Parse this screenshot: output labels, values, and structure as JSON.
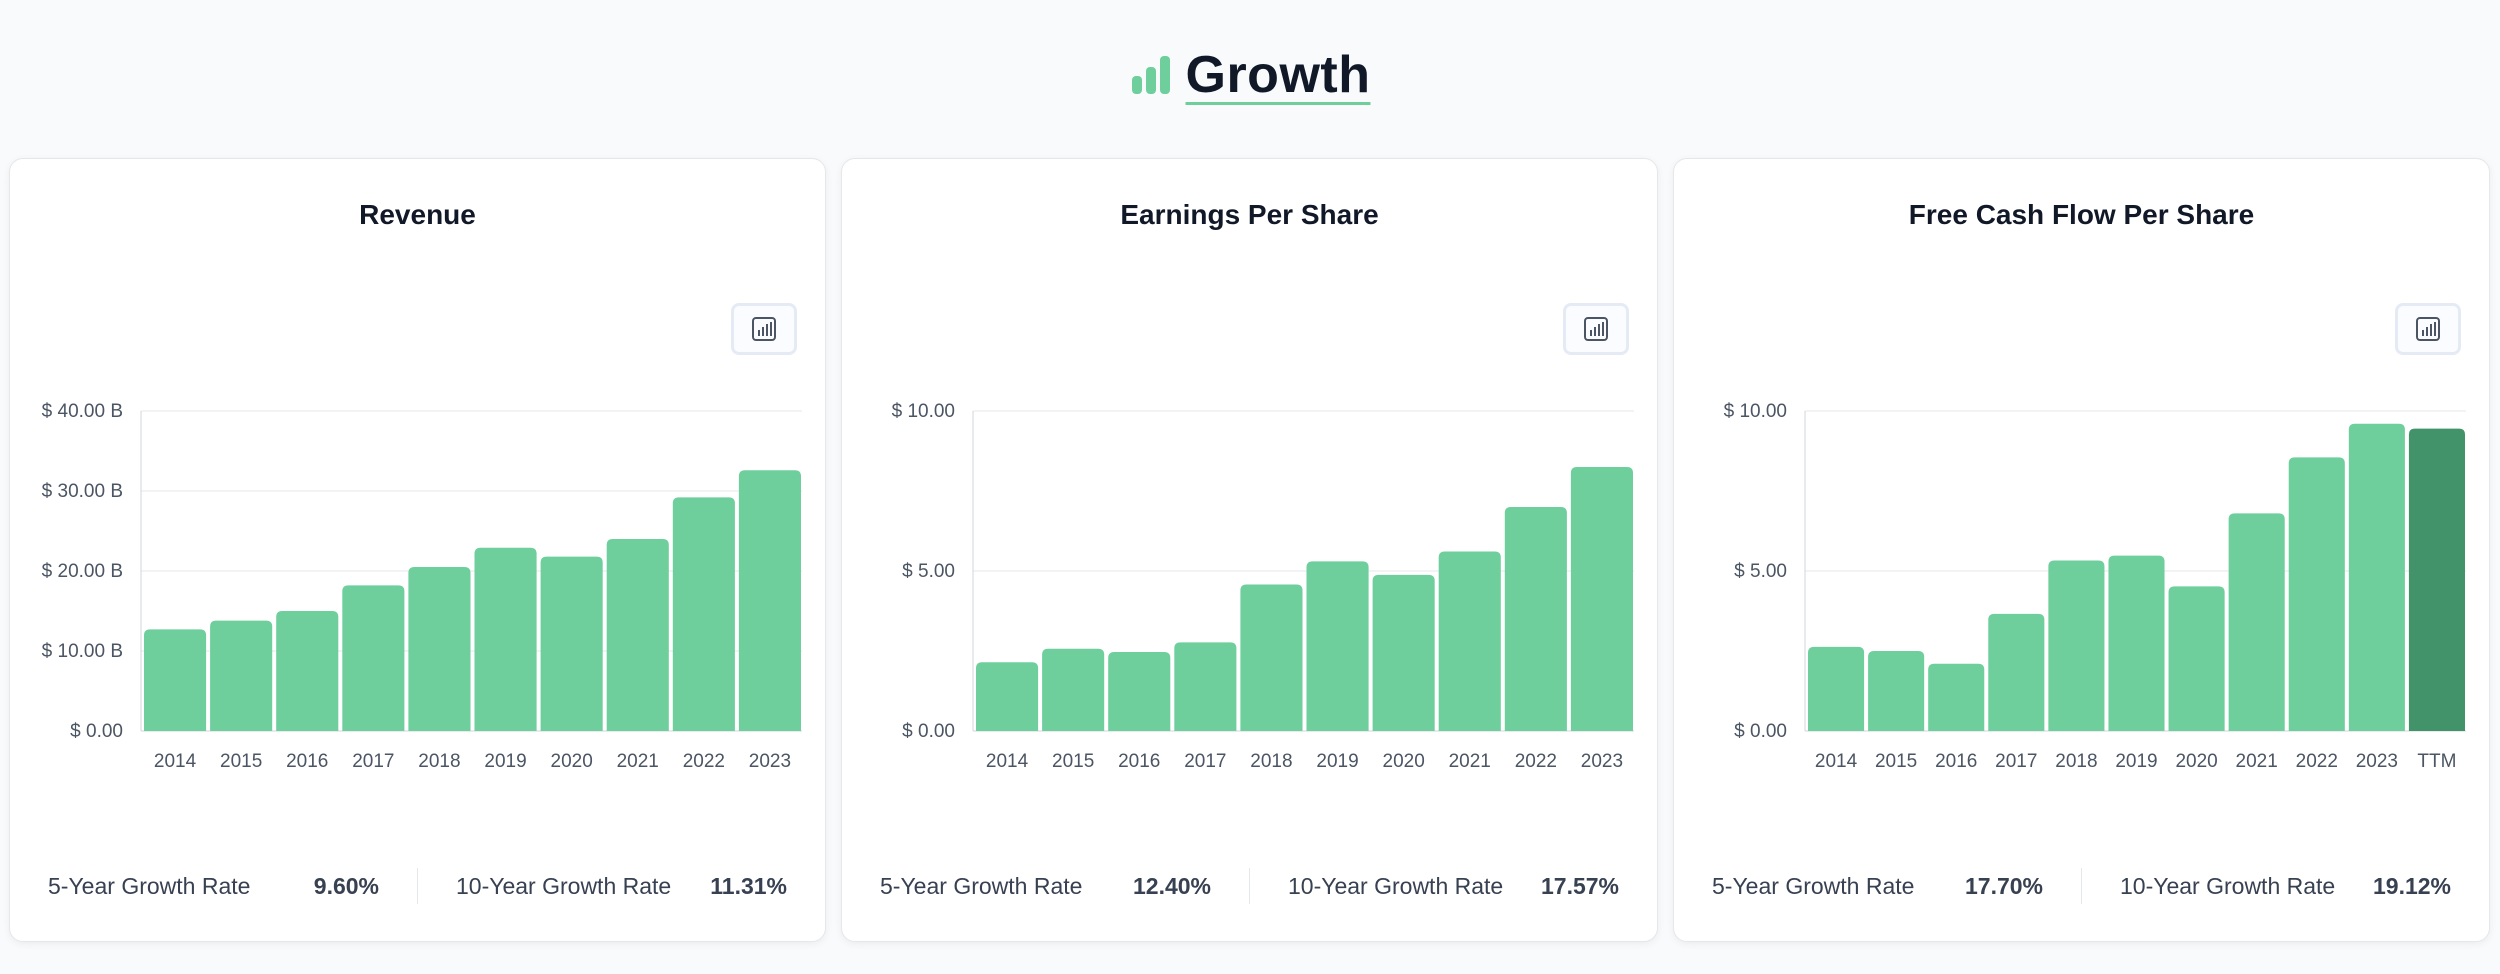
{
  "page": {
    "title": "Growth"
  },
  "cards": [
    {
      "title": "Revenue",
      "button": "bar-chart-toggle",
      "footer": {
        "five_label": "5-Year Growth Rate",
        "five_value": "9.60%",
        "ten_label": "10-Year Growth Rate",
        "ten_value": "11.31%"
      },
      "chart_data": {
        "type": "bar",
        "title": "Revenue",
        "categories": [
          "2014",
          "2015",
          "2016",
          "2017",
          "2018",
          "2019",
          "2020",
          "2021",
          "2022",
          "2023"
        ],
        "values": [
          12.7,
          13.8,
          15.0,
          18.2,
          20.5,
          22.9,
          21.8,
          24.0,
          29.2,
          32.6
        ],
        "unit": "B",
        "ylim": [
          0,
          40
        ],
        "yticks": [
          0,
          10,
          20,
          30,
          40
        ],
        "ytick_labels": [
          "$ 0.00",
          "$ 10.00 B",
          "$ 20.00 B",
          "$ 30.00 B",
          "$ 40.00 B"
        ],
        "color": "#6ecf9d",
        "grid": true
      }
    },
    {
      "title": "Earnings Per Share",
      "button": "bar-chart-toggle",
      "footer": {
        "five_label": "5-Year Growth Rate",
        "five_value": "12.40%",
        "ten_label": "10-Year Growth Rate",
        "ten_value": "17.57%"
      },
      "chart_data": {
        "type": "bar",
        "title": "Earnings Per Share",
        "categories": [
          "2014",
          "2015",
          "2016",
          "2017",
          "2018",
          "2019",
          "2020",
          "2021",
          "2022",
          "2023"
        ],
        "values": [
          2.15,
          2.57,
          2.47,
          2.77,
          4.58,
          5.3,
          4.88,
          5.61,
          7.0,
          8.25
        ],
        "ylim": [
          0,
          10
        ],
        "yticks": [
          0,
          5,
          10
        ],
        "ytick_labels": [
          "$ 0.00",
          "$ 5.00",
          "$ 10.00"
        ],
        "color": "#6ecf9d",
        "grid": true
      }
    },
    {
      "title": "Free Cash Flow Per Share",
      "button": "bar-chart-toggle",
      "footer": {
        "five_label": "5-Year Growth Rate",
        "five_value": "17.70%",
        "ten_label": "10-Year Growth Rate",
        "ten_value": "19.12%"
      },
      "chart_data": {
        "type": "bar",
        "title": "Free Cash Flow Per Share",
        "categories": [
          "2014",
          "2015",
          "2016",
          "2017",
          "2018",
          "2019",
          "2020",
          "2021",
          "2022",
          "2023",
          "TTM"
        ],
        "values": [
          2.63,
          2.5,
          2.1,
          3.66,
          5.33,
          5.48,
          4.52,
          6.8,
          8.55,
          9.6,
          9.45
        ],
        "ylim": [
          0,
          10
        ],
        "yticks": [
          0,
          5,
          10
        ],
        "ytick_labels": [
          "$ 0.00",
          "$ 5.00",
          "$ 10.00"
        ],
        "color": "#6ecf9d",
        "highlight_color": "#42936a",
        "highlight_index": 10,
        "grid": true
      }
    }
  ]
}
